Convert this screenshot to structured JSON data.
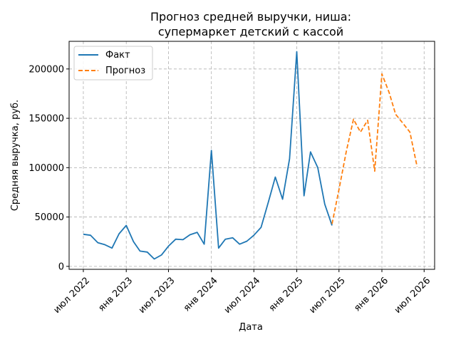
{
  "chart_data": {
    "type": "line",
    "title_line1": "Прогноз средней выручки, ниша:",
    "title_line2": "супермаркет детский с кассой",
    "xlabel": "Дата",
    "ylabel": "Средняя выручка, руб.",
    "x_type": "date",
    "xlim": [
      "2022-05-01",
      "2026-08-15"
    ],
    "ylim": [
      -3000,
      228000
    ],
    "grid": true,
    "legend_position": "top-left",
    "x_ticks": [
      {
        "date": "2022-07-01",
        "label": "июл 2022"
      },
      {
        "date": "2023-01-01",
        "label": "янв 2023"
      },
      {
        "date": "2023-07-01",
        "label": "июл 2023"
      },
      {
        "date": "2024-01-01",
        "label": "янв 2024"
      },
      {
        "date": "2024-07-01",
        "label": "июл 2024"
      },
      {
        "date": "2025-01-01",
        "label": "янв 2025"
      },
      {
        "date": "2025-07-01",
        "label": "июл 2025"
      },
      {
        "date": "2026-01-01",
        "label": "янв 2026"
      },
      {
        "date": "2026-07-01",
        "label": "июл 2026"
      }
    ],
    "y_ticks": [
      {
        "value": 0,
        "label": "0"
      },
      {
        "value": 50000,
        "label": "50000"
      },
      {
        "value": 100000,
        "label": "100000"
      },
      {
        "value": 150000,
        "label": "150000"
      },
      {
        "value": 200000,
        "label": "200000"
      }
    ],
    "series": [
      {
        "name": "Факт",
        "color": "#1f77b4",
        "style": "solid",
        "points": [
          {
            "x": "2022-07-01",
            "y": 32500
          },
          {
            "x": "2022-08-01",
            "y": 31500
          },
          {
            "x": "2022-09-01",
            "y": 24000
          },
          {
            "x": "2022-10-01",
            "y": 22000
          },
          {
            "x": "2022-11-01",
            "y": 18500
          },
          {
            "x": "2022-12-01",
            "y": 33000
          },
          {
            "x": "2023-01-01",
            "y": 41500
          },
          {
            "x": "2023-02-01",
            "y": 25000
          },
          {
            "x": "2023-03-01",
            "y": 15500
          },
          {
            "x": "2023-04-01",
            "y": 14500
          },
          {
            "x": "2023-05-01",
            "y": 7500
          },
          {
            "x": "2023-06-01",
            "y": 11500
          },
          {
            "x": "2023-07-01",
            "y": 20500
          },
          {
            "x": "2023-08-01",
            "y": 27500
          },
          {
            "x": "2023-09-01",
            "y": 27000
          },
          {
            "x": "2023-10-01",
            "y": 32000
          },
          {
            "x": "2023-11-01",
            "y": 34500
          },
          {
            "x": "2023-12-01",
            "y": 22500
          },
          {
            "x": "2024-01-01",
            "y": 117500
          },
          {
            "x": "2024-02-01",
            "y": 18500
          },
          {
            "x": "2024-03-01",
            "y": 27500
          },
          {
            "x": "2024-04-01",
            "y": 29000
          },
          {
            "x": "2024-05-01",
            "y": 22500
          },
          {
            "x": "2024-06-01",
            "y": 25500
          },
          {
            "x": "2024-07-01",
            "y": 31500
          },
          {
            "x": "2024-08-01",
            "y": 39500
          },
          {
            "x": "2024-09-01",
            "y": 65000
          },
          {
            "x": "2024-10-01",
            "y": 90500
          },
          {
            "x": "2024-11-01",
            "y": 68000
          },
          {
            "x": "2024-12-01",
            "y": 109000
          },
          {
            "x": "2025-01-01",
            "y": 217500
          },
          {
            "x": "2025-02-01",
            "y": 71500
          },
          {
            "x": "2025-03-01",
            "y": 116000
          },
          {
            "x": "2025-04-01",
            "y": 100000
          },
          {
            "x": "2025-05-01",
            "y": 63000
          },
          {
            "x": "2025-06-01",
            "y": 41500
          }
        ]
      },
      {
        "name": "Прогноз",
        "color": "#ff7f0e",
        "style": "dashed",
        "points": [
          {
            "x": "2025-06-01",
            "y": 43000
          },
          {
            "x": "2025-07-01",
            "y": 78000
          },
          {
            "x": "2025-08-01",
            "y": 116000
          },
          {
            "x": "2025-09-01",
            "y": 149000
          },
          {
            "x": "2025-10-01",
            "y": 136000
          },
          {
            "x": "2025-11-01",
            "y": 148000
          },
          {
            "x": "2025-12-01",
            "y": 96500
          },
          {
            "x": "2026-01-01",
            "y": 195000
          },
          {
            "x": "2026-02-01",
            "y": 176000
          },
          {
            "x": "2026-03-01",
            "y": 154000
          },
          {
            "x": "2026-04-01",
            "y": 145000
          },
          {
            "x": "2026-05-01",
            "y": 136000
          },
          {
            "x": "2026-06-01",
            "y": 101000
          }
        ]
      }
    ]
  }
}
